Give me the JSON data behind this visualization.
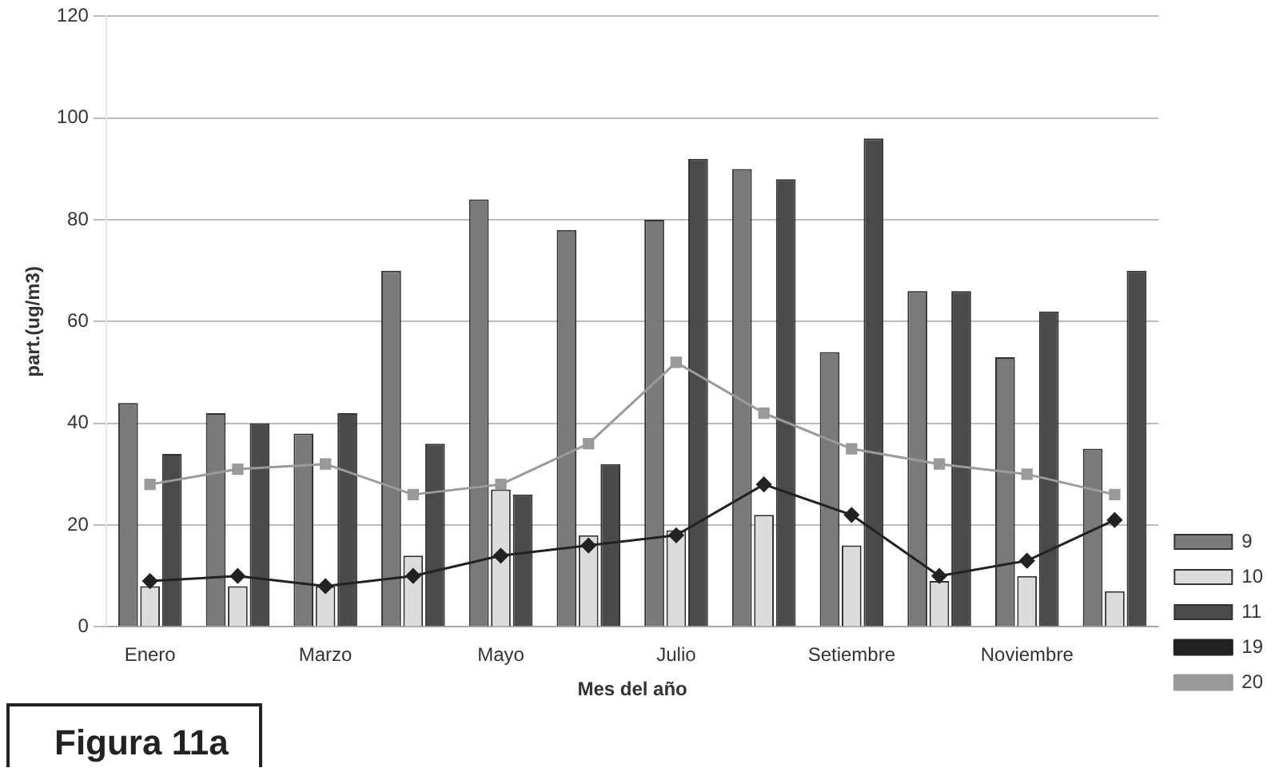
{
  "chart_data": {
    "type": "bar",
    "xlabel": "Mes del año",
    "ylabel": "part.(ug/m3)",
    "annotations": [
      "Figura 11a"
    ],
    "categories": [
      "Enero",
      null,
      "Marzo",
      null,
      "Mayo",
      null,
      "Julio",
      null,
      "Setiembre",
      null,
      "Noviembre",
      null
    ],
    "series": [
      {
        "name": "9",
        "color": "#7a7a7a",
        "values": [
          44,
          42,
          38,
          70,
          84,
          78,
          80,
          90,
          54,
          66,
          53,
          35
        ]
      },
      {
        "name": "10",
        "color": "#dcdcdc",
        "values": [
          8,
          8,
          8,
          14,
          27,
          18,
          19,
          22,
          16,
          9,
          10,
          7
        ]
      },
      {
        "name": "11",
        "color": "#4a4a4a",
        "values": [
          34,
          40,
          42,
          36,
          26,
          32,
          92,
          88,
          96,
          66,
          62,
          70
        ]
      },
      {
        "name": "19",
        "type": "line",
        "color": "#222222",
        "marker": "diamond",
        "values": [
          9,
          10,
          8,
          10,
          14,
          16,
          18,
          28,
          22,
          10,
          13,
          21
        ]
      },
      {
        "name": "20",
        "type": "line",
        "color": "#9a9a9a",
        "marker": "square",
        "values": [
          28,
          31,
          32,
          26,
          28,
          36,
          52,
          42,
          35,
          32,
          30,
          26
        ]
      }
    ],
    "ylim": [
      0,
      120
    ],
    "yticks": [
      0,
      20,
      40,
      60,
      80,
      100,
      120
    ],
    "grid": "y",
    "legend": "right"
  }
}
